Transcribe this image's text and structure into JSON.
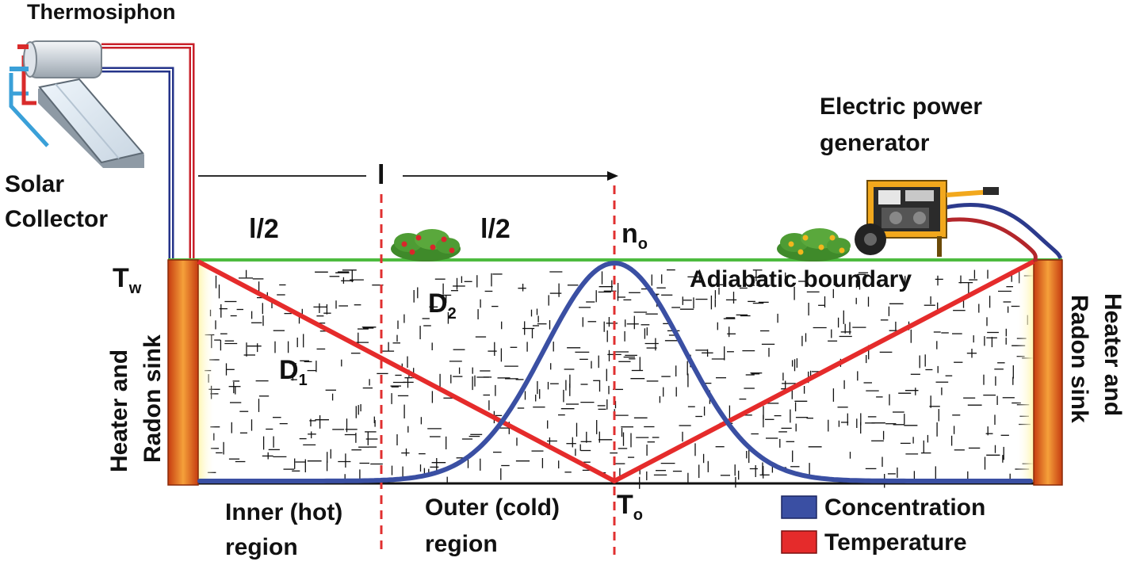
{
  "labels": {
    "thermosiphon": "Thermosiphon",
    "solar_line1": "Solar",
    "solar_line2": "Collector",
    "generator_line1": "Electric power",
    "generator_line2": "generator",
    "length": "l",
    "half_left": "l/2",
    "half_right": "l/2",
    "n0_main": "n",
    "n0_sub": "o",
    "tw_main": "T",
    "tw_sub": "w",
    "t0_main": "T",
    "t0_sub": "o",
    "d1_main": "D",
    "d1_sub": "1",
    "d2_main": "D",
    "d2_sub": "2",
    "adiabatic": "Adiabatic boundary",
    "left_sink_line1": "Heater and",
    "left_sink_line2": "Radon sink",
    "right_sink_line1": "Heater and",
    "right_sink_line2": "Radon sink",
    "inner_line1": "Inner (hot)",
    "inner_line2": "region",
    "outer_line1": "Outer (cold)",
    "outer_line2": "region"
  },
  "legend": [
    {
      "label": "Concentration",
      "color": "#3a4fa3"
    },
    {
      "label": "Temperature",
      "color": "#e52b2b"
    }
  ],
  "colors": {
    "concentration": "#3a4fa3",
    "temperature": "#e52b2b",
    "boundary": "#4dbb3f",
    "heater": "#e8621a",
    "divider": "#e03030"
  }
}
